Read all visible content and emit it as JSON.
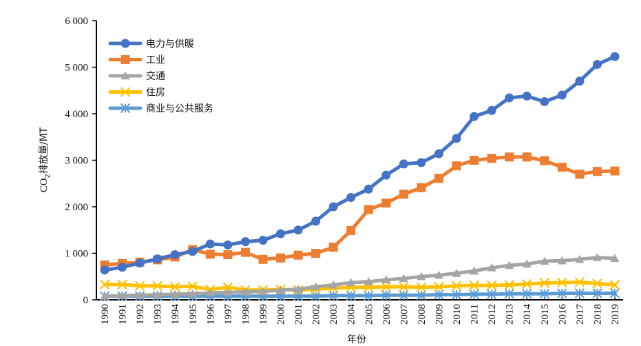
{
  "chart_data": {
    "type": "line",
    "title": "",
    "xlabel": "年份",
    "ylabel": "CO₂排放量/MT",
    "ylabel_parts": {
      "pre": "CO",
      "sub": "2",
      "post": "排放量/MT"
    },
    "ylim": [
      0,
      6000
    ],
    "yticks": [
      0,
      1000,
      2000,
      3000,
      4000,
      5000,
      6000
    ],
    "ytick_labels": [
      "0",
      "1 000",
      "2 000",
      "3 000",
      "4 000",
      "5 000",
      "6 000"
    ],
    "grid": false,
    "legend_position": "top-left",
    "x": [
      "1990",
      "1991",
      "1992",
      "1993",
      "1994",
      "1995",
      "1996",
      "1997",
      "1998",
      "1999",
      "2000",
      "2001",
      "2002",
      "2003",
      "2004",
      "2005",
      "2006",
      "2007",
      "2008",
      "2009",
      "2010",
      "2011",
      "2012",
      "2013",
      "2014",
      "2015",
      "2016",
      "2017",
      "2018",
      "2019"
    ],
    "series": [
      {
        "name": "电力与供暖",
        "color": "#4472C4",
        "marker": "circle",
        "values": [
          640,
          700,
          790,
          880,
          970,
          1040,
          1200,
          1180,
          1250,
          1280,
          1420,
          1500,
          1690,
          2000,
          2200,
          2380,
          2680,
          2920,
          2950,
          3140,
          3470,
          3940,
          4070,
          4340,
          4380,
          4260,
          4400,
          4700,
          5060,
          5230
        ]
      },
      {
        "name": "工业",
        "color": "#ED7D31",
        "marker": "square",
        "values": [
          750,
          780,
          810,
          860,
          920,
          1080,
          980,
          970,
          1020,
          870,
          900,
          960,
          1000,
          1130,
          1490,
          1940,
          2080,
          2270,
          2410,
          2610,
          2880,
          3000,
          3040,
          3070,
          3070,
          2990,
          2850,
          2700,
          2760,
          2770
        ]
      },
      {
        "name": "交通",
        "color": "#A5A5A5",
        "marker": "triangle",
        "values": [
          80,
          90,
          100,
          110,
          120,
          130,
          150,
          160,
          170,
          180,
          210,
          230,
          280,
          320,
          370,
          390,
          430,
          460,
          500,
          530,
          570,
          620,
          690,
          740,
          770,
          830,
          840,
          870,
          910,
          890
        ]
      },
      {
        "name": "住房",
        "color": "#FFC000",
        "marker": "x",
        "values": [
          330,
          330,
          300,
          300,
          280,
          290,
          220,
          270,
          210,
          210,
          220,
          210,
          230,
          250,
          270,
          270,
          280,
          280,
          270,
          280,
          300,
          310,
          310,
          320,
          340,
          360,
          370,
          380,
          350,
          320
        ]
      },
      {
        "name": "商业与公共服务",
        "color": "#5B9BD5",
        "marker": "asterisk",
        "values": [
          80,
          80,
          80,
          80,
          80,
          80,
          80,
          80,
          80,
          80,
          80,
          80,
          80,
          90,
          90,
          90,
          100,
          100,
          100,
          110,
          110,
          120,
          120,
          130,
          130,
          130,
          140,
          140,
          140,
          140
        ]
      }
    ]
  }
}
